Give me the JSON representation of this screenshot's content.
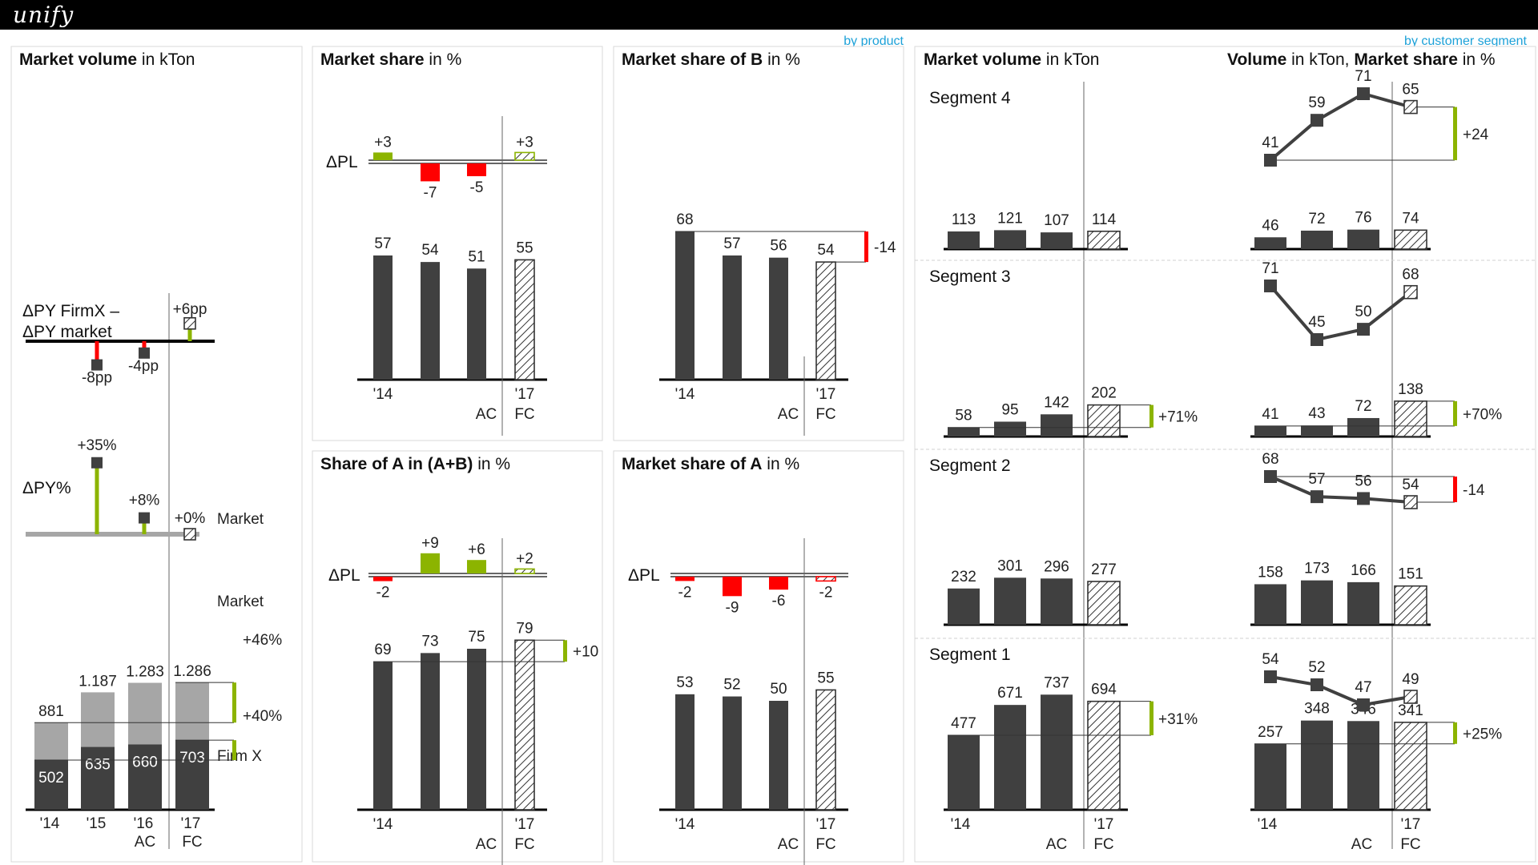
{
  "app": {
    "logo": "unify"
  },
  "links": {
    "by_product": "by product",
    "by_customer_segment": "by customer segment"
  },
  "colors": {
    "actual": "#404040",
    "market": "#a6a6a6",
    "positive": "#8cb400",
    "negative": "#ff0000",
    "light_market": "#a6a6a6",
    "accent_link": "#1da1d8"
  },
  "chart_data": [
    {
      "id": "market_volume",
      "type": "bar",
      "title_bold": "Market volume",
      "title_rest": " in kTon",
      "categories": [
        "'14",
        "'15",
        "'16",
        "'17"
      ],
      "category_sublabels": [
        "",
        "",
        "AC",
        "FC"
      ],
      "series": [
        {
          "name": "Firm X",
          "values": [
            502,
            635,
            660,
            703
          ]
        },
        {
          "name": "Market",
          "values": [
            881,
            1187,
            1283,
            1286
          ]
        }
      ],
      "value_labels_market": [
        "881",
        "1.187",
        "1.283",
        "1.286"
      ],
      "variance_labels": {
        "market": "+46%",
        "firm": "+40%"
      },
      "dpy_label": "ΔPY%",
      "dpy_firm": {
        "values": [
          35,
          8
        ],
        "labels": [
          "+35%",
          "+8%"
        ]
      },
      "dpy_market": {
        "label": "+0%",
        "name": "Market"
      },
      "diff_label_line1": "ΔPY FirmX –",
      "diff_label_line2": "ΔPY market",
      "diff": {
        "values": [
          -8,
          -4,
          6
        ],
        "labels": [
          "-8pp",
          "-4pp",
          "+6pp"
        ]
      }
    },
    {
      "id": "market_share",
      "type": "bar",
      "title_bold": "Market share",
      "title_rest": " in %",
      "categories": [
        "'14",
        "",
        "AC",
        "'17"
      ],
      "bottom_labels": [
        "'14",
        "AC",
        "'17",
        "FC"
      ],
      "values": [
        57,
        54,
        51,
        55
      ],
      "value_labels": [
        "57",
        "54",
        "51",
        "55"
      ],
      "dpl_label": "ΔPL",
      "dpl": {
        "values": [
          3,
          -7,
          -5,
          3
        ],
        "labels": [
          "+3",
          "-7",
          "-5",
          "+3"
        ]
      }
    },
    {
      "id": "market_share_B",
      "type": "bar",
      "title_bold": "Market share of B",
      "title_rest": " in %",
      "bottom_labels": [
        "'14",
        "AC",
        "'17",
        "FC"
      ],
      "values": [
        68,
        57,
        56,
        54
      ],
      "value_labels": [
        "68",
        "57",
        "56",
        "54"
      ],
      "variance_label": "-14"
    },
    {
      "id": "share_A_in_AB",
      "type": "bar",
      "title_bold": "Share of A in (A+B)",
      "title_rest": " in %",
      "bottom_labels": [
        "'14",
        "AC",
        "'17",
        "FC"
      ],
      "values": [
        69,
        73,
        75,
        79
      ],
      "value_labels": [
        "69",
        "73",
        "75",
        "79"
      ],
      "variance_label": "+10",
      "dpl_label": "ΔPL",
      "dpl": {
        "values": [
          -2,
          9,
          6,
          2
        ],
        "labels": [
          "-2",
          "+9",
          "+6",
          "+2"
        ]
      }
    },
    {
      "id": "market_share_A",
      "type": "bar",
      "title_bold": "Market share of A",
      "title_rest": " in %",
      "bottom_labels": [
        "'14",
        "AC",
        "'17",
        "FC"
      ],
      "values": [
        53,
        52,
        50,
        55
      ],
      "value_labels": [
        "53",
        "52",
        "50",
        "55"
      ],
      "dpl_label": "ΔPL",
      "dpl": {
        "values": [
          -2,
          -9,
          -6,
          -2
        ],
        "labels": [
          "-2",
          "-9",
          "-6",
          "-2"
        ]
      }
    },
    {
      "id": "segment_volume",
      "type": "bar",
      "title_bold": "Market volume",
      "title_rest": " in kTon",
      "bottom_labels": [
        "'14",
        "AC",
        "'17",
        "FC"
      ],
      "segments": [
        {
          "name": "Segment 4",
          "values": [
            113,
            121,
            107,
            114
          ],
          "labels": [
            "113",
            "121",
            "107",
            "114"
          ],
          "variance": ""
        },
        {
          "name": "Segment 3",
          "values": [
            58,
            95,
            142,
            202
          ],
          "labels": [
            "58",
            "95",
            "142",
            "202"
          ],
          "variance": "+71%"
        },
        {
          "name": "Segment 2",
          "values": [
            232,
            301,
            296,
            277
          ],
          "labels": [
            "232",
            "301",
            "296",
            "277"
          ],
          "variance": ""
        },
        {
          "name": "Segment 1",
          "values": [
            477,
            671,
            737,
            694
          ],
          "labels": [
            "477",
            "671",
            "737",
            "694"
          ],
          "variance": "+31%"
        }
      ]
    },
    {
      "id": "segment_volume_share",
      "type": "line",
      "title_bold_1": "Volume",
      "title_rest_1": " in kTon, ",
      "title_bold_2": "Market share",
      "title_rest_2": " in %",
      "bottom_labels": [
        "'14",
        "AC",
        "'17",
        "FC"
      ],
      "segments": [
        {
          "share": [
            41,
            59,
            71,
            65
          ],
          "share_labels": [
            "41",
            "59",
            "71",
            "65"
          ],
          "share_variance": "+24",
          "volume": [
            46,
            72,
            76,
            74
          ],
          "volume_labels": [
            "46",
            "72",
            "76",
            "74"
          ],
          "volume_variance": ""
        },
        {
          "share": [
            71,
            45,
            50,
            68
          ],
          "share_labels": [
            "71",
            "45",
            "50",
            "68"
          ],
          "share_variance": "",
          "volume": [
            41,
            43,
            72,
            138
          ],
          "volume_labels": [
            "41",
            "43",
            "72",
            "138"
          ],
          "volume_variance": "+70%"
        },
        {
          "share": [
            68,
            57,
            56,
            54
          ],
          "share_labels": [
            "68",
            "57",
            "56",
            "54"
          ],
          "share_variance": "-14",
          "volume": [
            158,
            173,
            166,
            151
          ],
          "volume_labels": [
            "158",
            "173",
            "166",
            "151"
          ],
          "volume_variance": ""
        },
        {
          "share": [
            54,
            52,
            47,
            49
          ],
          "share_labels": [
            "54",
            "52",
            "47",
            "49"
          ],
          "share_variance": "",
          "volume": [
            257,
            348,
            346,
            341
          ],
          "volume_labels": [
            "257",
            "348",
            "346",
            "341"
          ],
          "volume_variance": "+25%"
        }
      ]
    }
  ]
}
